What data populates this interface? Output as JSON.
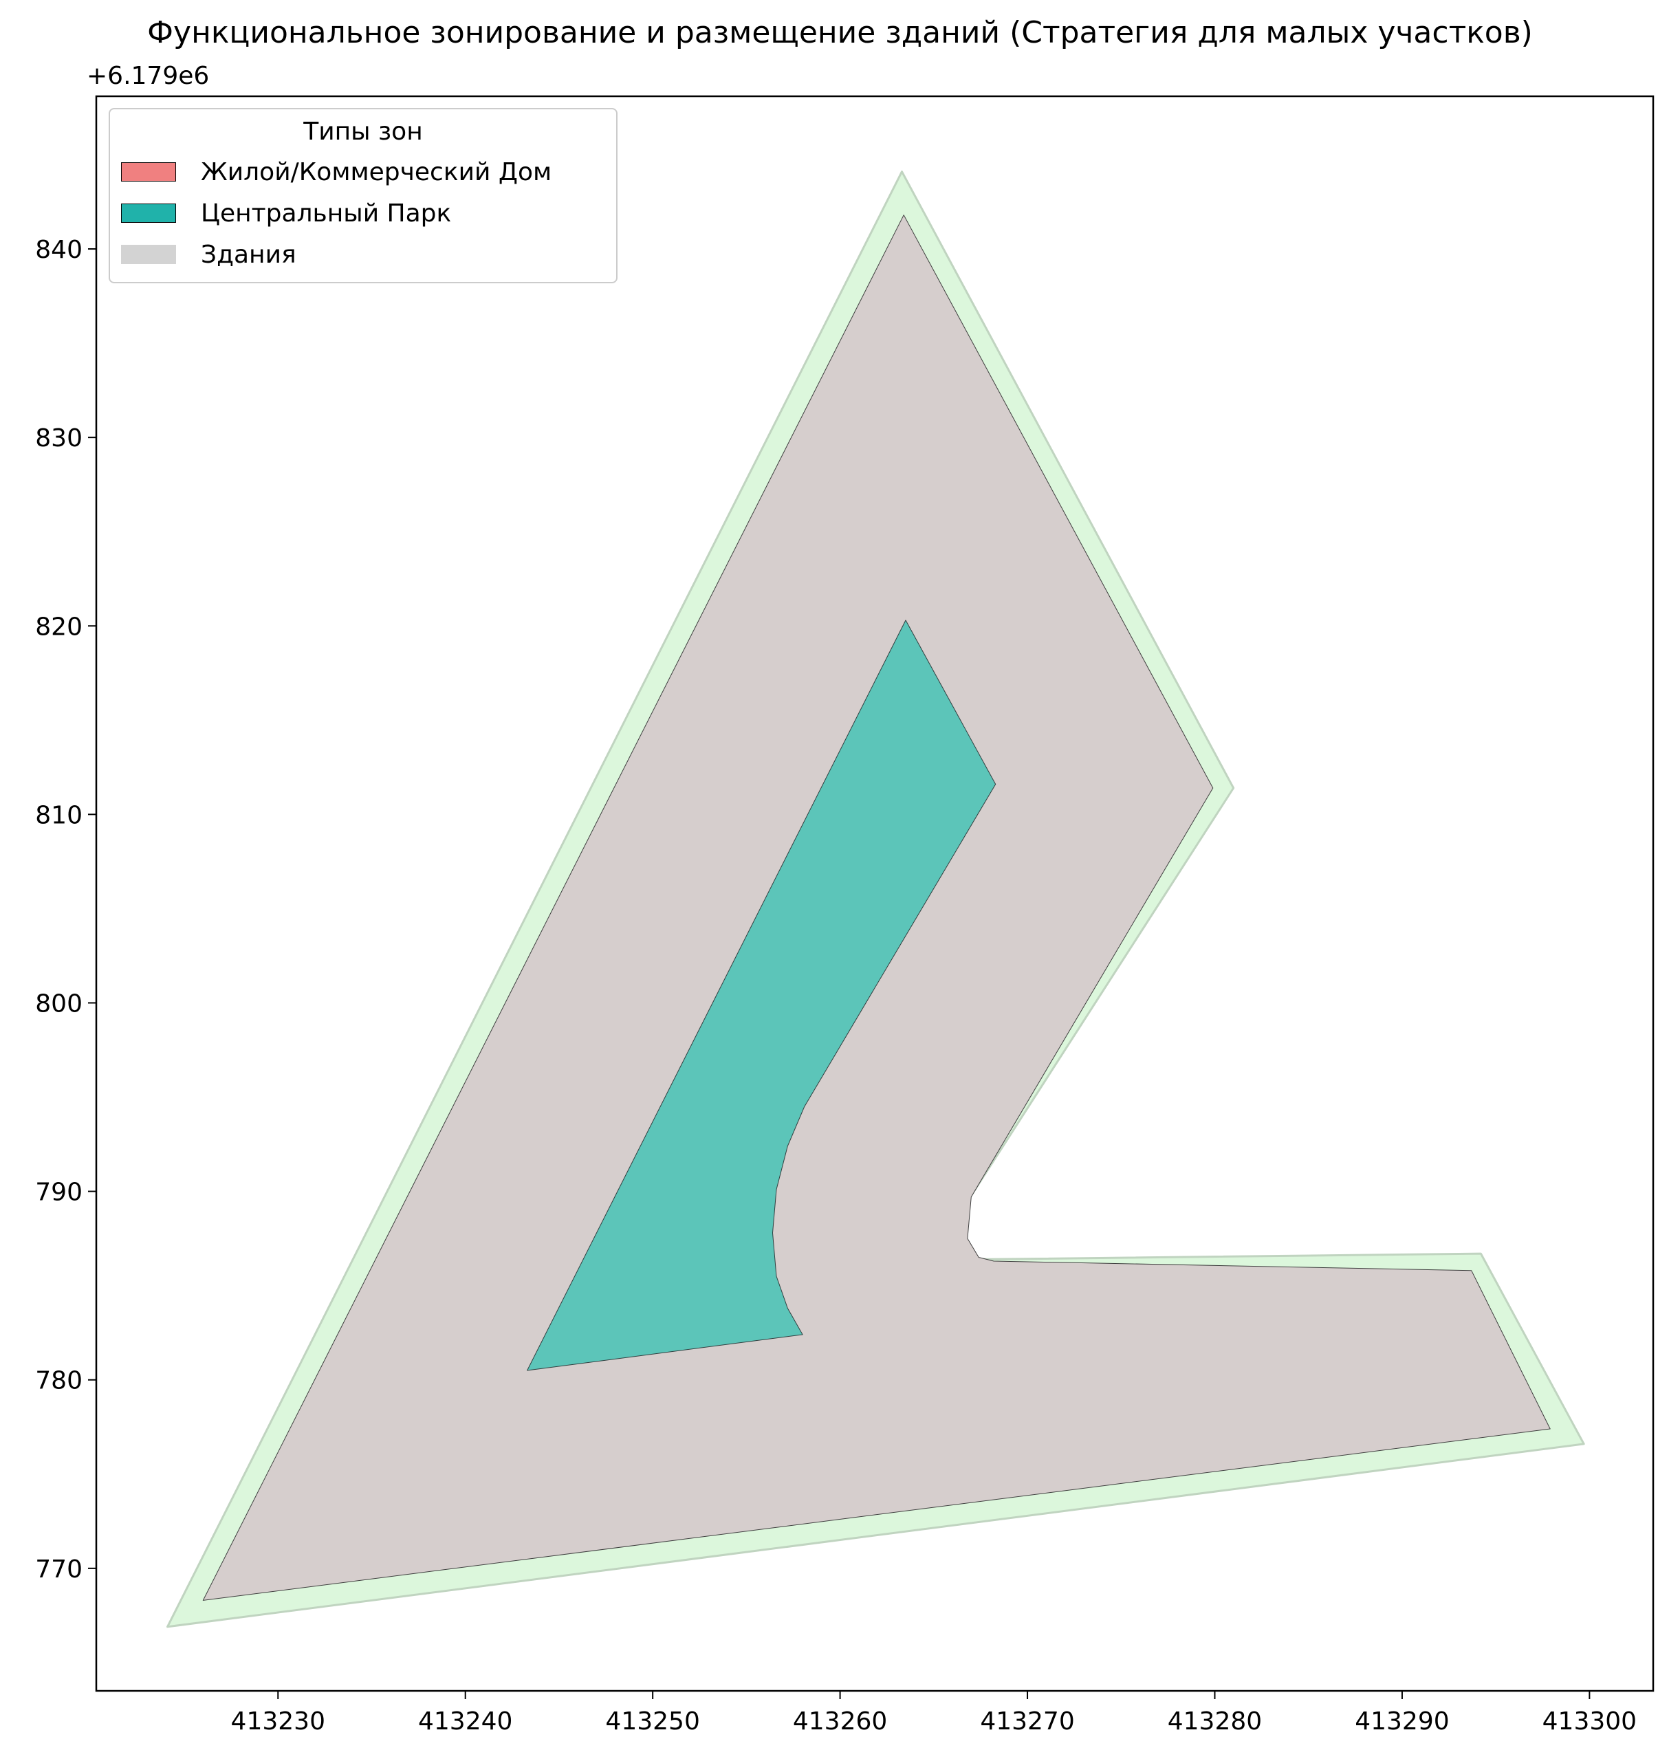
{
  "title": "Функциональное зонирование и размещение зданий (Стратегия для малых участков)",
  "y_offset_label": "+6.179e6",
  "legend": {
    "title": "Типы зон",
    "items": [
      {
        "label": "Жилой/Коммерческий Дом",
        "color": "#f08080",
        "edge": "#000000"
      },
      {
        "label": "Центральный Парк",
        "color": "#20b2aa",
        "edge": "#000000"
      },
      {
        "label": "Здания",
        "color": "#d3d3d3",
        "edge": "#d3d3d3"
      }
    ]
  },
  "colors": {
    "buffer_fill": "#dcf7dc",
    "buffer_edge": "#c0d4c0",
    "residential_fill": "#d6cecd",
    "park_fill": "#5cc5b9"
  },
  "chart_data": {
    "type": "map",
    "title": "Функциональное зонирование и размещение зданий (Стратегия для малых участков)",
    "y_offset": "+6.179e6",
    "xlim": [
      413220.3,
      413303.4
    ],
    "ylim": [
      763.5,
      848.1
    ],
    "x_ticks": [
      413230,
      413240,
      413250,
      413260,
      413270,
      413280,
      413290,
      413300
    ],
    "x_tick_labels": [
      "413230",
      "413240",
      "413250",
      "413260",
      "413270",
      "413280",
      "413290",
      "413300"
    ],
    "y_ticks": [
      770,
      780,
      790,
      800,
      810,
      820,
      830,
      840
    ],
    "y_tick_labels": [
      "770",
      "780",
      "790",
      "800",
      "810",
      "820",
      "830",
      "840"
    ],
    "grid": false,
    "legend_position": "top-left",
    "layers": [
      {
        "name": "Здания",
        "role": "building-buffer",
        "polygon": [
          [
            413224.1,
            766.9
          ],
          [
            413263.3,
            844.1
          ],
          [
            413281.0,
            811.4
          ],
          [
            413266.5,
            789.0
          ],
          [
            413266.4,
            787.3
          ],
          [
            413267.0,
            786.4
          ],
          [
            413268.0,
            786.4
          ],
          [
            413294.2,
            786.7
          ],
          [
            413299.7,
            776.6
          ]
        ]
      },
      {
        "name": "Жилой/Коммерческий Дом",
        "role": "residential",
        "polygon": [
          [
            413226.0,
            768.3
          ],
          [
            413263.4,
            841.8
          ],
          [
            413279.9,
            811.4
          ],
          [
            413267.0,
            789.7
          ],
          [
            413266.8,
            787.5
          ],
          [
            413267.4,
            786.5
          ],
          [
            413268.2,
            786.3
          ],
          [
            413293.7,
            785.8
          ],
          [
            413297.9,
            777.4
          ]
        ]
      },
      {
        "name": "Центральный Парк",
        "role": "park",
        "polygon": [
          [
            413243.3,
            780.5
          ],
          [
            413263.5,
            820.3
          ],
          [
            413268.3,
            811.6
          ],
          [
            413258.1,
            794.5
          ],
          [
            413257.2,
            792.4
          ],
          [
            413256.6,
            790.1
          ],
          [
            413256.4,
            787.8
          ],
          [
            413256.6,
            785.5
          ],
          [
            413257.2,
            783.8
          ],
          [
            413258.0,
            782.4
          ]
        ]
      }
    ]
  }
}
